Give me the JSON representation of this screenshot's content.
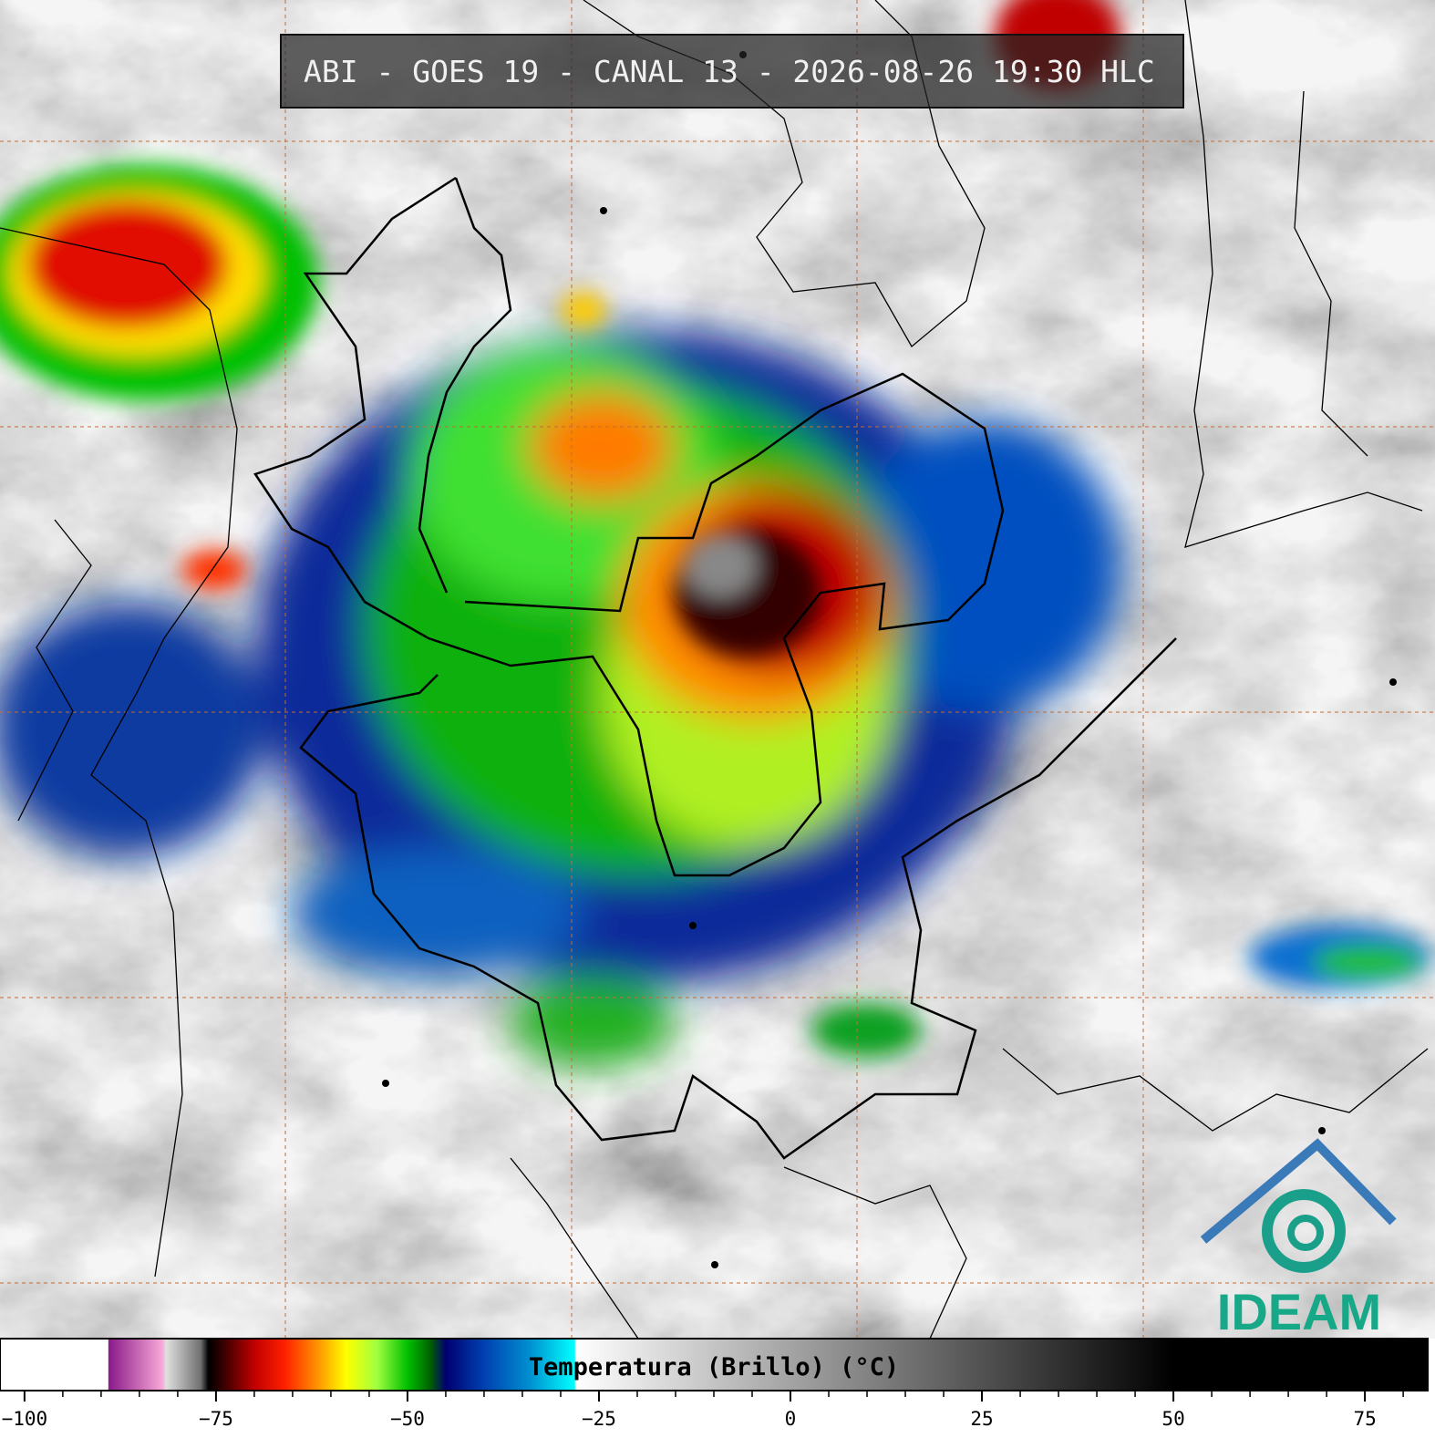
{
  "header": {
    "title": "ABI - GOES 19 - CANAL 13 - 2026-08-26 19:30 HLC"
  },
  "logo": {
    "text": "IDEAM"
  },
  "colorbar": {
    "label": "Temperatura (Brillo) (°C)",
    "xlim": [
      -103.2,
      83.2
    ],
    "xticks": [
      {
        "value": -100,
        "label": "−100"
      },
      {
        "value": -75,
        "label": "−75"
      },
      {
        "value": -50,
        "label": "−50"
      },
      {
        "value": -25,
        "label": "−25"
      },
      0,
      25,
      50,
      75
    ],
    "minor_xticks": [
      -95,
      -90,
      -85,
      -80,
      -70,
      -65,
      -60,
      -55,
      -45,
      -40,
      -35,
      -30,
      -20,
      -15,
      -10,
      -5,
      5,
      10,
      15,
      20,
      30,
      35,
      40,
      45,
      55,
      60,
      65,
      70,
      80
    ],
    "colormap": [
      {
        "value": -103.2,
        "color": "#ffffff"
      },
      {
        "value": -89.1,
        "color": "#ffffff"
      },
      {
        "value": -89,
        "color": "#8b1a89"
      },
      {
        "value": -82,
        "color": "#f7a8d8"
      },
      {
        "value": -81.5,
        "color": "#e0e0e0"
      },
      {
        "value": -77,
        "color": "#707070"
      },
      {
        "value": -76,
        "color": "#000000"
      },
      {
        "value": -74,
        "color": "#3a0000"
      },
      {
        "value": -70,
        "color": "#c00000"
      },
      {
        "value": -66,
        "color": "#ff2000"
      },
      {
        "value": -62,
        "color": "#ff8c00"
      },
      {
        "value": -58,
        "color": "#ffff00"
      },
      {
        "value": -54,
        "color": "#a0ff40"
      },
      {
        "value": -50,
        "color": "#00c000"
      },
      {
        "value": -47,
        "color": "#006000"
      },
      {
        "value": -45,
        "color": "#000070"
      },
      {
        "value": -40,
        "color": "#0040b0"
      },
      {
        "value": -34,
        "color": "#0090d0"
      },
      {
        "value": -28.2,
        "color": "#00ffff"
      },
      {
        "value": -28,
        "color": "#ffffff"
      },
      {
        "value": 50,
        "color": "#000000"
      },
      {
        "value": 83.2,
        "color": "#000000"
      }
    ]
  }
}
